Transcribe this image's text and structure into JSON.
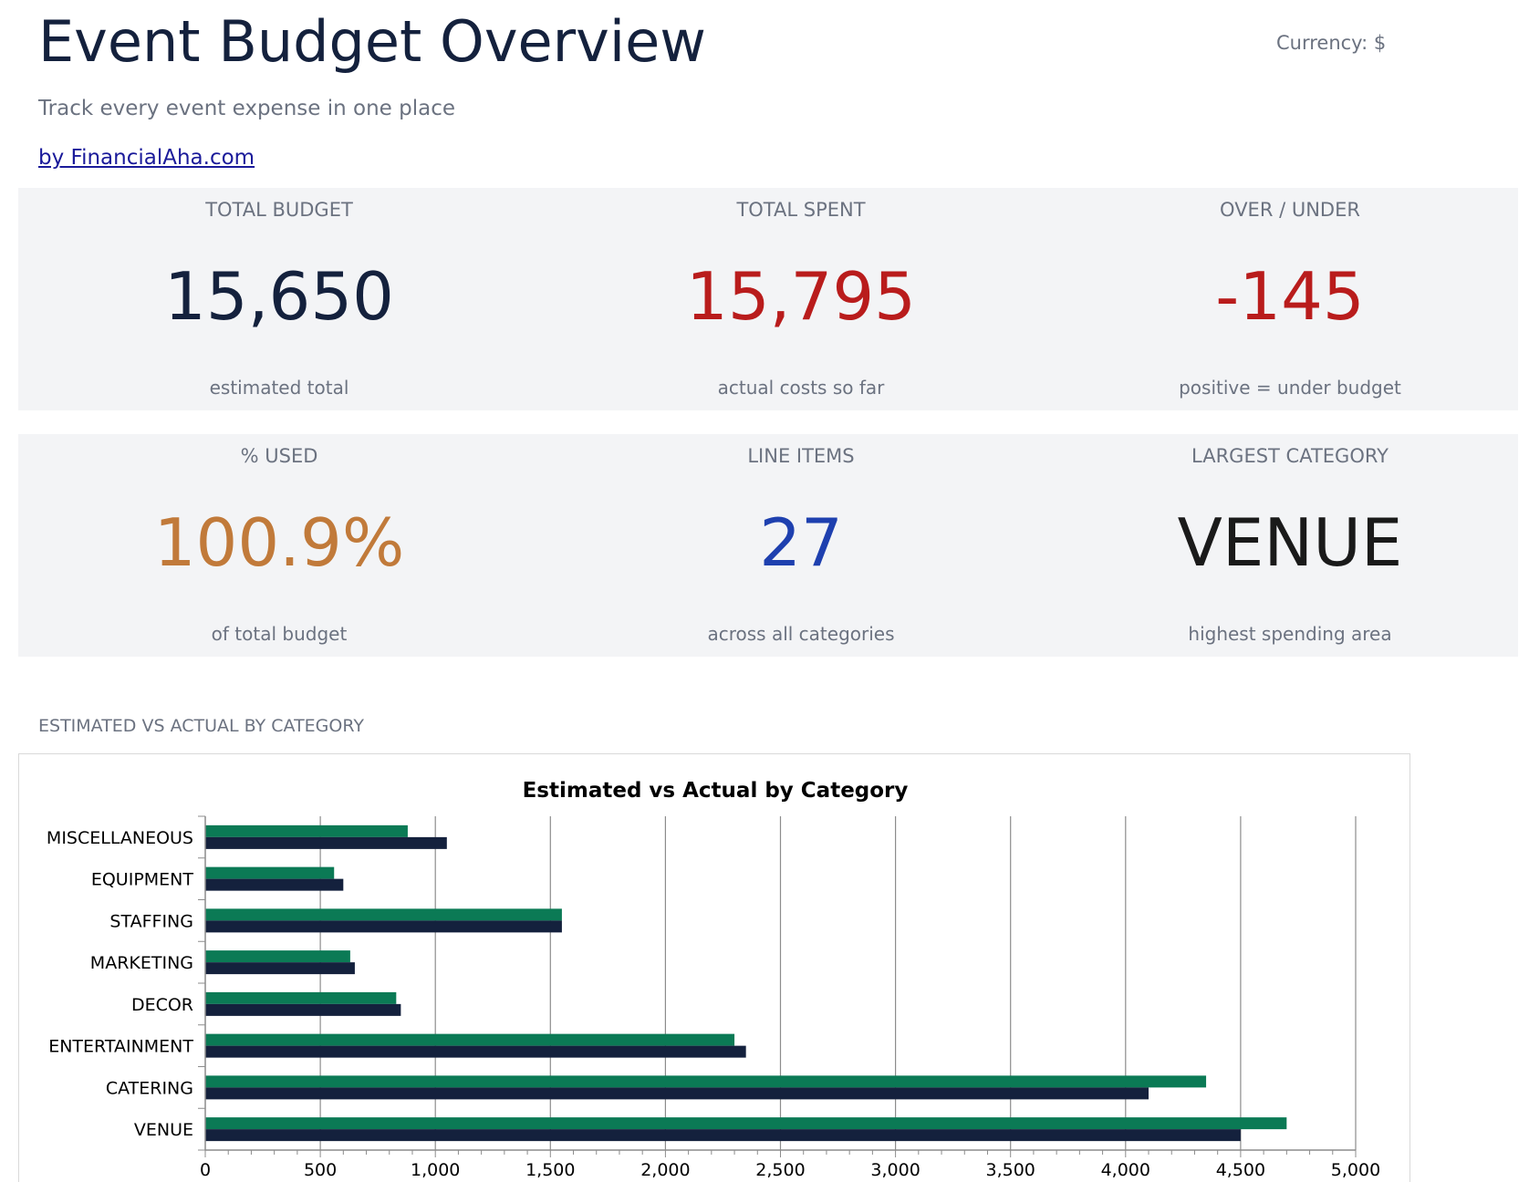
{
  "header": {
    "title": "Event Budget Overview",
    "currency_label": "Currency: $",
    "subtitle": "Track every event expense in one place",
    "link_text": "by FinancialAha.com"
  },
  "kpis": [
    {
      "label": "TOTAL BUDGET",
      "value": "15,650",
      "sub": "estimated total",
      "color": "#14213d"
    },
    {
      "label": "TOTAL SPENT",
      "value": "15,795",
      "sub": "actual costs so far",
      "color": "#b91c1c"
    },
    {
      "label": "OVER / UNDER",
      "value": "-145",
      "sub": "positive = under budget",
      "color": "#b91c1c"
    },
    {
      "label": "% USED",
      "value": "100.9%",
      "sub": "of total budget",
      "color": "#c17a3a"
    },
    {
      "label": "LINE ITEMS",
      "value": "27",
      "sub": "across all categories",
      "color": "#1e40af"
    },
    {
      "label": "LARGEST CATEGORY",
      "value": "VENUE",
      "sub": "highest spending area",
      "color": "#1a1a1a"
    }
  ],
  "section": {
    "chart_label": "ESTIMATED VS ACTUAL BY CATEGORY"
  },
  "chart_data": {
    "type": "bar",
    "orientation": "horizontal",
    "title": "Estimated vs Actual by Category",
    "categories": [
      "MISCELLANEOUS",
      "EQUIPMENT",
      "STAFFING",
      "MARKETING",
      "DECOR",
      "ENTERTAINMENT",
      "CATERING",
      "VENUE"
    ],
    "series": [
      {
        "values": [
          880,
          560,
          1550,
          630,
          830,
          2300,
          4350,
          4700
        ],
        "color": "#0b7a55"
      },
      {
        "values": [
          1050,
          600,
          1550,
          650,
          850,
          2350,
          4100,
          4500
        ],
        "color": "#14213d"
      }
    ],
    "xlim": [
      0,
      5000
    ],
    "x_ticks": [
      0,
      500,
      1000,
      1500,
      2000,
      2500,
      3000,
      3500,
      4000,
      4500,
      5000
    ],
    "x_tick_labels": [
      "0",
      "500",
      "1,000",
      "1,500",
      "2,000",
      "2,500",
      "3,000",
      "3,500",
      "4,000",
      "4,500",
      "5,000"
    ],
    "grid": true,
    "legend": "none"
  }
}
